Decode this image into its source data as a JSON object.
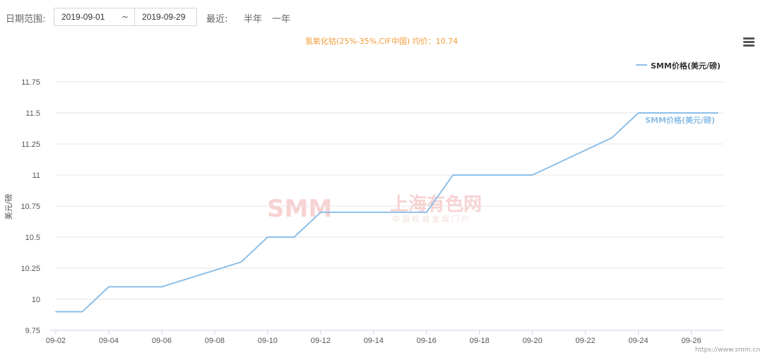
{
  "filter": {
    "date_range_label": "日期范围:",
    "start_date": "2019-09-01",
    "separator": "~",
    "end_date": "2019-09-29",
    "recent_label": "最近:",
    "half_year": "半年",
    "one_year": "一年"
  },
  "menu_icon": "hamburger-menu-icon",
  "watermark": {
    "brand": "SMM",
    "cn": "上海有色网",
    "sub": "中国权威金属门户"
  },
  "footer": "https://www.smm.cn",
  "chart_data": {
    "type": "line",
    "title": "氢氧化钴(25%-35%,CIF中国) 均价：10.74",
    "ylabel": "美元/磅",
    "xlabel": "",
    "ylim": [
      9.75,
      11.75
    ],
    "yticks": [
      "9.75",
      "10",
      "10.25",
      "10.5",
      "10.75",
      "11",
      "11.25",
      "11.5",
      "11.75"
    ],
    "x": [
      "09-02",
      "09-03",
      "09-04",
      "09-05",
      "09-06",
      "09-09",
      "09-10",
      "09-11",
      "09-12",
      "09-16",
      "09-17",
      "09-18",
      "09-19",
      "09-20",
      "09-23",
      "09-24",
      "09-25",
      "09-26",
      "09-27"
    ],
    "x_day_index": [
      0,
      1,
      2,
      3,
      4,
      7,
      8,
      9,
      10,
      14,
      15,
      16,
      17,
      18,
      21,
      22,
      23,
      24,
      25
    ],
    "xtick_labels": [
      "09-02",
      "09-04",
      "09-06",
      "09-08",
      "09-10",
      "09-12",
      "09-14",
      "09-16",
      "09-18",
      "09-20",
      "09-22",
      "09-24",
      "09-26"
    ],
    "series": [
      {
        "name": "SMM价格(美元/磅)",
        "values": [
          9.9,
          9.9,
          10.1,
          10.1,
          10.1,
          10.3,
          10.5,
          10.5,
          10.7,
          10.7,
          11.0,
          11.0,
          11.0,
          11.0,
          11.3,
          11.5,
          11.5,
          11.5,
          11.5
        ],
        "color": "#8dbfe8"
      }
    ],
    "series_end_label": "SMM价格(美元/磅)",
    "legend_position": "top-right",
    "grid": true
  }
}
